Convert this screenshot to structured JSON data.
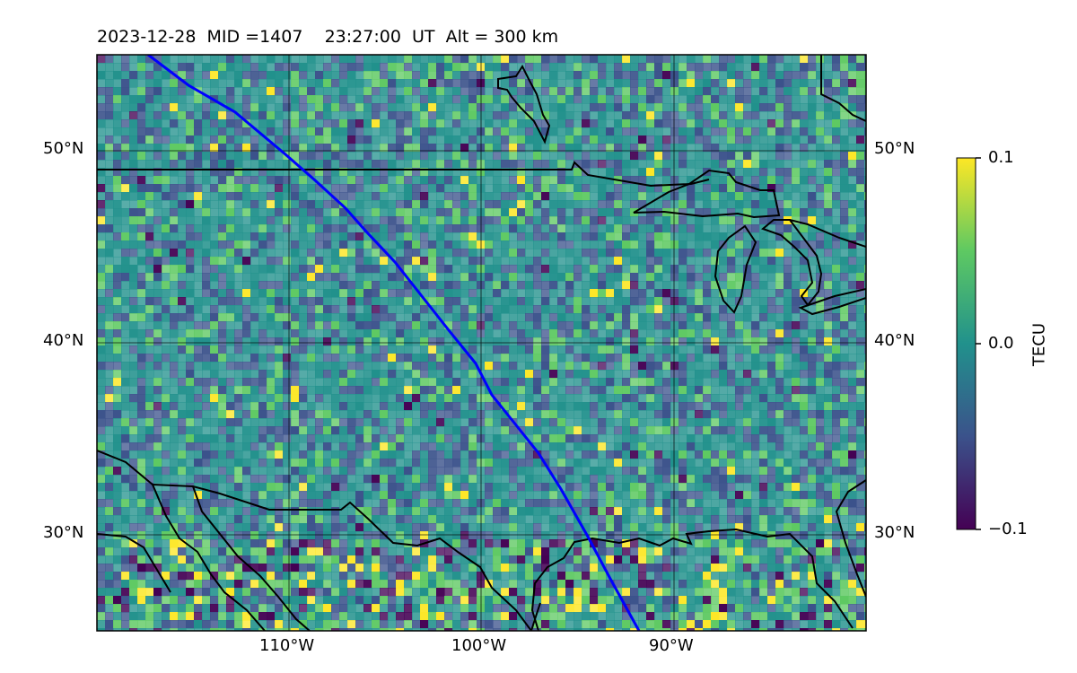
{
  "map": {
    "title": "2023-12-28  MID =1407    23:27:00  UT  Alt = 300 km",
    "extent": {
      "lon": [
        -120,
        -80
      ],
      "lat": [
        25,
        55
      ]
    },
    "gridlines": true,
    "lat_ticks_left": [
      "50°N",
      "40°N",
      "30°N"
    ],
    "lat_ticks_right": [
      "50°N",
      "40°N",
      "30°N"
    ],
    "lon_ticks": [
      "110°W",
      "100°W",
      "90°W"
    ],
    "track_color": "#0000ff",
    "coastline_color": "#000000"
  },
  "colorbar": {
    "label": "TECU",
    "ticks": [
      "0.1",
      "0.0",
      "−0.1"
    ],
    "range": [
      -0.1,
      0.1
    ],
    "colormap": "viridis",
    "colors": [
      "#440154",
      "#3b528b",
      "#21918c",
      "#5ec962",
      "#fde725"
    ]
  }
}
